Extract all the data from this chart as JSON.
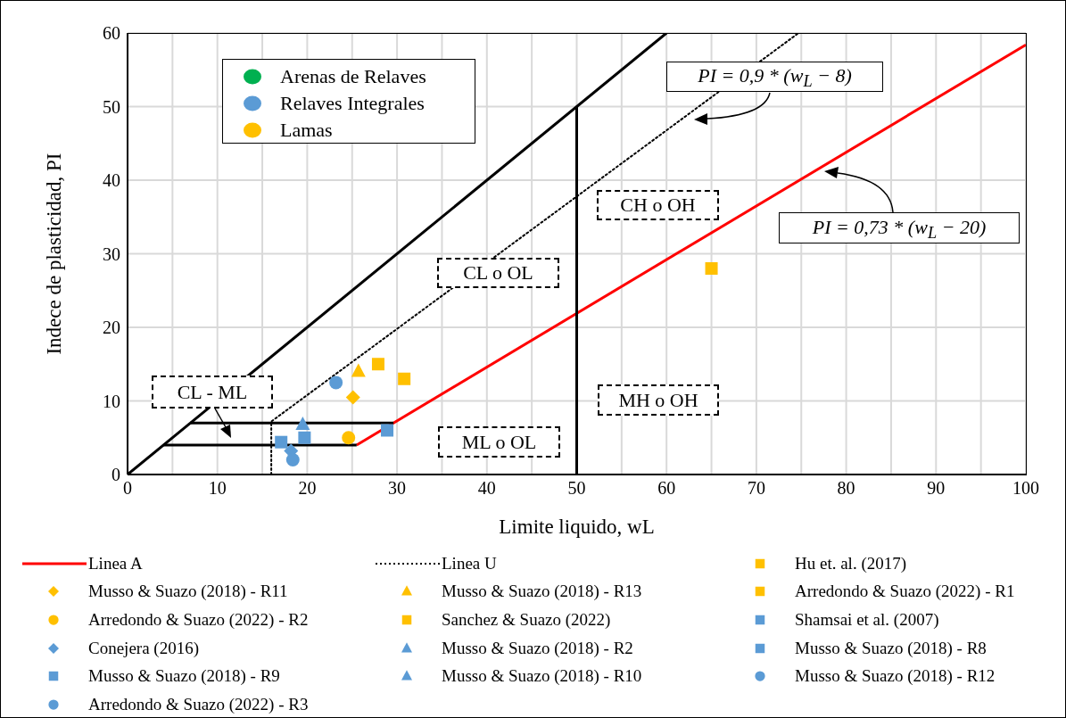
{
  "chart_data": {
    "type": "scatter",
    "xlabel": "Limite liquido, wL",
    "ylabel": "Indece de plasticidad, PI",
    "xlim": [
      0,
      100
    ],
    "ylim": [
      0,
      60
    ],
    "xticks": [
      0,
      {
        "value": 5,
        "label": null
      },
      10,
      {
        "value": 15,
        "label": null
      },
      20,
      {
        "value": 25,
        "label": null
      },
      30,
      {
        "value": 35,
        "label": null
      },
      40,
      {
        "value": 45,
        "label": null
      },
      50,
      {
        "value": 55,
        "label": null
      },
      60,
      {
        "value": 65,
        "label": null
      },
      70,
      {
        "value": 75,
        "label": null
      },
      80,
      {
        "value": 85,
        "label": null
      },
      90,
      {
        "value": 95,
        "label": null
      },
      100
    ],
    "yticks": [
      0,
      10,
      20,
      30,
      40,
      50,
      60
    ],
    "grid": true,
    "legend": "bottom",
    "annotations": [
      "CL - ML",
      "CL o OL",
      "CH o OH",
      "ML o OL",
      "MH o OH",
      "PI = 0,9 * (w$_{L}$ − 8)",
      "PI = 0,73 * (w$_{L}$ − 20)",
      "Arenas de Relaves",
      "Relaves Integrales",
      "Lamas"
    ],
    "series": [
      {
        "name": "Linea A",
        "type": "line",
        "color": "#ff0000",
        "line_style": "solid",
        "x": [
          25.5,
          100
        ],
        "values": [
          4,
          58.4
        ]
      },
      {
        "name": "Linea U",
        "type": "line",
        "color": "#000000",
        "line_style": "dotted",
        "x": [
          16,
          16,
          74.7
        ],
        "values": [
          0,
          7.2,
          60
        ]
      },
      {
        "name": "Hu et. al. (2017)",
        "color": "#ffc000",
        "marker": "square",
        "x": [
          27.9
        ],
        "values": [
          15
        ]
      },
      {
        "name": "Musso & Suazo (2018) - R11",
        "color": "#ffc000",
        "marker": "diamond",
        "x": [
          25.1
        ],
        "values": [
          10.5
        ]
      },
      {
        "name": "Musso & Suazo (2018) - R13",
        "color": "#ffc000",
        "marker": "triangle",
        "x": [
          25.7
        ],
        "values": [
          14
        ]
      },
      {
        "name": "Arredondo & Suazo (2022) - R1",
        "color": "#ffc000",
        "marker": "square",
        "x": [
          30.8
        ],
        "values": [
          13
        ]
      },
      {
        "name": "Arredondo & Suazo (2022) - R2",
        "color": "#ffc000",
        "marker": "circle",
        "x": [
          24.6
        ],
        "values": [
          5
        ]
      },
      {
        "name": "Sanchez & Suazo (2022)",
        "color": "#ffc000",
        "marker": "square",
        "x": [
          65
        ],
        "values": [
          28
        ]
      },
      {
        "name": "Shamsai et al. (2007)",
        "color": "#5b9bd5",
        "marker": "square",
        "x": [
          17.1
        ],
        "values": [
          4.4
        ]
      },
      {
        "name": "Conejera (2016)",
        "color": "#5b9bd5",
        "marker": "diamond",
        "x": [
          18.2
        ],
        "values": [
          3.2
        ]
      },
      {
        "name": "Musso & Suazo (2018) - R2",
        "color": "#5b9bd5",
        "marker": "triangle",
        "x": [
          19.5
        ],
        "values": [
          6.8
        ]
      },
      {
        "name": "Musso & Suazo (2018) - R8",
        "color": "#5b9bd5",
        "marker": "square",
        "x": [
          28.9
        ],
        "values": [
          6
        ]
      },
      {
        "name": "Musso & Suazo (2018) - R9",
        "color": "#5b9bd5",
        "marker": "square",
        "x": [
          19.7
        ],
        "values": [
          5
        ]
      },
      {
        "name": "Musso & Suazo (2018) - R10",
        "color": "#5b9bd5",
        "marker": "triangle",
        "x": [
          null
        ],
        "values": [
          null
        ]
      },
      {
        "name": "Musso & Suazo (2018) - R12",
        "color": "#5b9bd5",
        "marker": "circle",
        "x": [
          18.4
        ],
        "values": [
          2
        ]
      },
      {
        "name": "Arredondo & Suazo (2022) - R3",
        "color": "#5b9bd5",
        "marker": "circle",
        "x": [
          23.2
        ],
        "values": [
          12.5
        ]
      },
      {
        "type": "line",
        "color": "#000000",
        "line_style": "solid",
        "x": [
          0,
          60
        ],
        "values": [
          0,
          60
        ]
      },
      {
        "type": "line",
        "color": "#000000",
        "line_style": "solid",
        "x": [
          4,
          25.5
        ],
        "values": [
          4,
          4
        ]
      },
      {
        "type": "line",
        "color": "#000000",
        "line_style": "solid",
        "x": [
          7,
          29.6
        ],
        "values": [
          7,
          7
        ]
      },
      {
        "type": "line",
        "color": "#000000",
        "line_style": "solid",
        "x": [
          50,
          50
        ],
        "values": [
          0,
          50
        ]
      }
    ]
  }
}
